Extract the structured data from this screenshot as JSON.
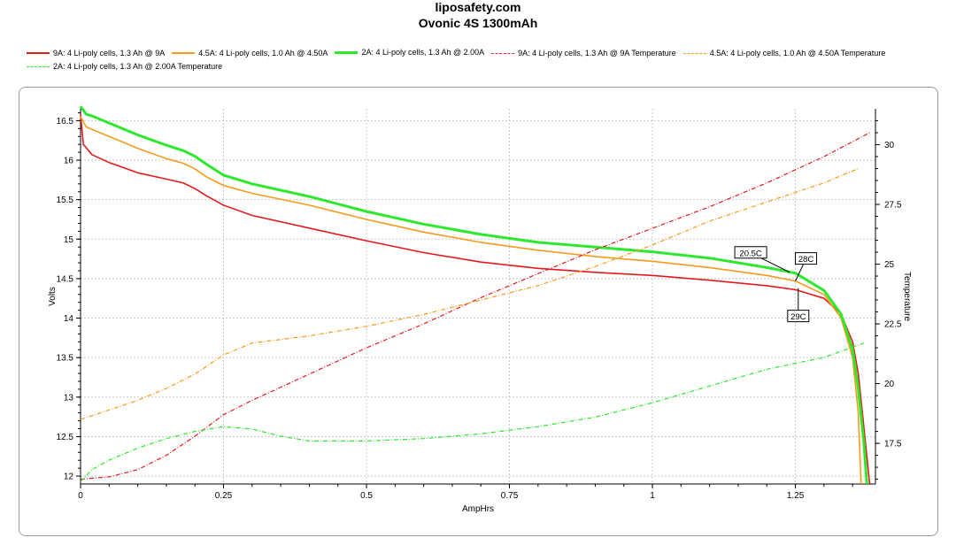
{
  "header": {
    "site": "liposafety.com",
    "title": "Ovonic 4S 1300mAh"
  },
  "chart_data": {
    "type": "line",
    "xlabel": "AmpHrs",
    "ylabel": "Volts",
    "y2label": "Temperature",
    "xlim": [
      0,
      1.39
    ],
    "ylim": [
      11.9,
      16.65
    ],
    "y2lim": [
      15.8,
      31.5
    ],
    "xticks": [
      "0",
      "0.25",
      "0.5",
      "0.75",
      "1",
      "1.25"
    ],
    "yticks": [
      "12",
      "12.5",
      "13",
      "13.5",
      "14",
      "14.5",
      "15",
      "15.5",
      "16",
      "16.5"
    ],
    "y2ticks": [
      "17.5",
      "20",
      "22.5",
      "25",
      "27.5",
      "30"
    ],
    "grid": true,
    "legend_position": "top",
    "series": [
      {
        "name": "9A: 4 Li-poly cells, 1.3 Ah @ 9A",
        "axis": "left",
        "color": "#e41a1c",
        "dash": "",
        "width": 1.6,
        "x": [
          0,
          0.005,
          0.02,
          0.05,
          0.1,
          0.15,
          0.18,
          0.2,
          0.22,
          0.25,
          0.3,
          0.4,
          0.5,
          0.6,
          0.7,
          0.8,
          0.9,
          1.0,
          1.1,
          1.2,
          1.25,
          1.3,
          1.33,
          1.35,
          1.36,
          1.37,
          1.38
        ],
        "y": [
          16.58,
          16.2,
          16.07,
          15.97,
          15.84,
          15.76,
          15.71,
          15.64,
          15.55,
          15.43,
          15.3,
          15.14,
          14.98,
          14.83,
          14.71,
          14.63,
          14.58,
          14.54,
          14.48,
          14.41,
          14.36,
          14.25,
          14.05,
          13.7,
          13.3,
          12.6,
          11.9
        ]
      },
      {
        "name": "4.5A: 4 Li-poly cells, 1.0 Ah @ 4.50A",
        "axis": "left",
        "color": "#f59b1c",
        "dash": "",
        "width": 1.6,
        "x": [
          0,
          0.01,
          0.05,
          0.1,
          0.15,
          0.18,
          0.2,
          0.22,
          0.25,
          0.3,
          0.4,
          0.5,
          0.6,
          0.7,
          0.8,
          0.9,
          1.0,
          1.1,
          1.2,
          1.25,
          1.3,
          1.33,
          1.35,
          1.36,
          1.365
        ],
        "y": [
          16.55,
          16.42,
          16.3,
          16.15,
          16.02,
          15.96,
          15.89,
          15.79,
          15.68,
          15.58,
          15.43,
          15.25,
          15.09,
          14.96,
          14.86,
          14.78,
          14.72,
          14.64,
          14.54,
          14.47,
          14.3,
          14.0,
          13.5,
          12.8,
          11.9
        ]
      },
      {
        "name": "2A: 4 Li-poly cells, 1.3 Ah @ 2.00A",
        "axis": "left",
        "color": "#2ee82e",
        "dash": "",
        "width": 3,
        "x": [
          0,
          0.01,
          0.02,
          0.05,
          0.1,
          0.15,
          0.18,
          0.2,
          0.22,
          0.25,
          0.3,
          0.4,
          0.5,
          0.6,
          0.7,
          0.8,
          0.9,
          1.0,
          1.1,
          1.2,
          1.25,
          1.3,
          1.33,
          1.35,
          1.36,
          1.37,
          1.375
        ],
        "y": [
          16.68,
          16.58,
          16.56,
          16.47,
          16.32,
          16.19,
          16.12,
          16.05,
          15.95,
          15.81,
          15.7,
          15.54,
          15.35,
          15.19,
          15.06,
          14.96,
          14.9,
          14.84,
          14.76,
          14.64,
          14.57,
          14.35,
          14.05,
          13.6,
          13.1,
          12.4,
          11.9
        ]
      },
      {
        "name": "9A: 4 Li-poly cells, 1.3 Ah @ 9A Temperature",
        "axis": "right",
        "color": "#e41a1c",
        "dash": "5,2,1,2",
        "width": 1.2,
        "x": [
          0,
          0.05,
          0.1,
          0.15,
          0.2,
          0.25,
          0.3,
          0.4,
          0.5,
          0.6,
          0.7,
          0.8,
          0.9,
          1.0,
          1.1,
          1.2,
          1.3,
          1.38
        ],
        "y": [
          16.0,
          16.1,
          16.4,
          17.0,
          17.8,
          18.7,
          19.3,
          20.4,
          21.5,
          22.5,
          23.6,
          24.6,
          25.6,
          26.5,
          27.4,
          28.4,
          29.5,
          30.5
        ]
      },
      {
        "name": "4.5A: 4 Li-poly cells, 1.0 Ah @ 4.50A Temperature",
        "axis": "right",
        "color": "#f59b1c",
        "dash": "5,2,1,2",
        "width": 1.2,
        "x": [
          0,
          0.05,
          0.1,
          0.15,
          0.2,
          0.25,
          0.3,
          0.4,
          0.5,
          0.6,
          0.7,
          0.8,
          0.9,
          1.0,
          1.1,
          1.2,
          1.3,
          1.36
        ],
        "y": [
          18.5,
          18.9,
          19.3,
          19.8,
          20.4,
          21.2,
          21.7,
          22.0,
          22.4,
          22.9,
          23.5,
          24.1,
          24.9,
          25.8,
          26.8,
          27.6,
          28.4,
          29.0
        ]
      },
      {
        "name": "2A: 4 Li-poly cells, 1.3 Ah @ 2.00A Temperature",
        "axis": "right",
        "color": "#2ee82e",
        "dash": "5,2,1,2",
        "width": 1.2,
        "x": [
          0,
          0.02,
          0.05,
          0.1,
          0.15,
          0.2,
          0.25,
          0.3,
          0.35,
          0.4,
          0.5,
          0.6,
          0.7,
          0.8,
          0.9,
          1.0,
          1.1,
          1.2,
          1.3,
          1.37
        ],
        "y": [
          15.9,
          16.4,
          16.8,
          17.3,
          17.7,
          18.0,
          18.2,
          18.1,
          17.8,
          17.6,
          17.6,
          17.7,
          17.9,
          18.2,
          18.6,
          19.2,
          19.9,
          20.6,
          21.1,
          21.7
        ]
      }
    ],
    "annotations": [
      {
        "text": "20.5C",
        "x": 1.24,
        "y": 14.58,
        "dx": -44,
        "dy": -22
      },
      {
        "text": "28C",
        "x": 1.25,
        "y": 14.47,
        "dx": 12,
        "dy": -25
      },
      {
        "text": "29C",
        "x": 1.255,
        "y": 14.38,
        "dx": 0,
        "dy": 32
      }
    ]
  }
}
